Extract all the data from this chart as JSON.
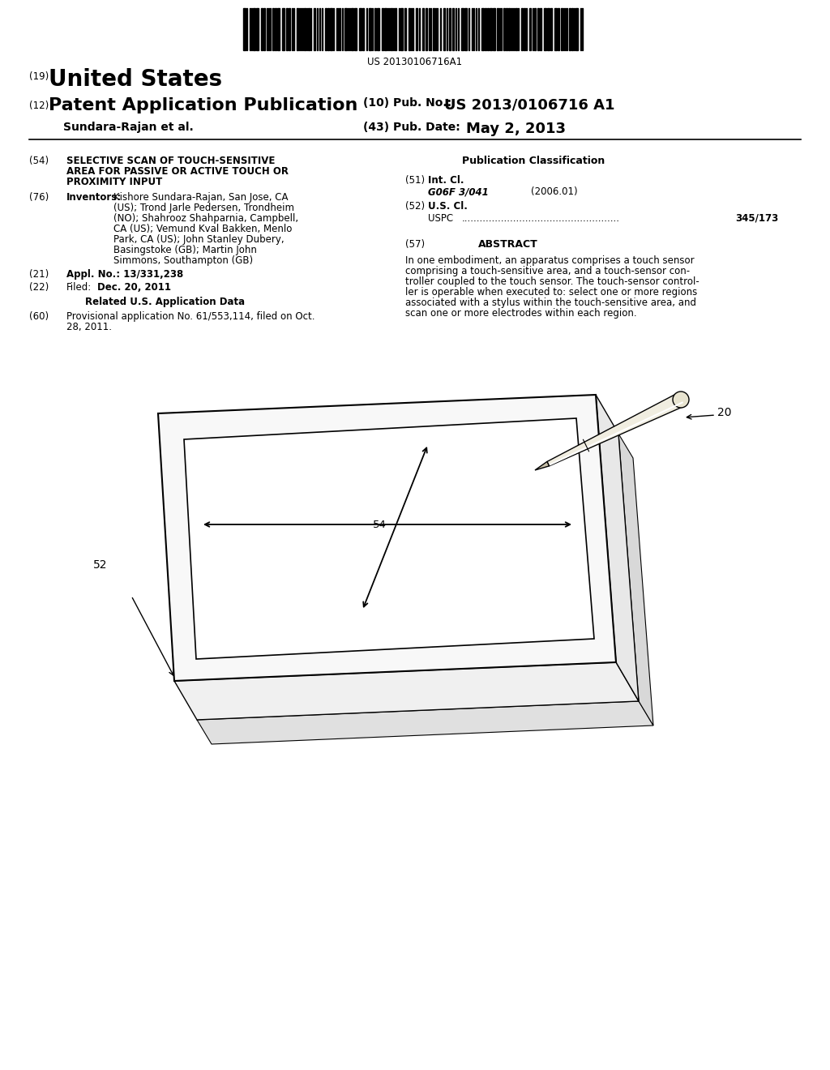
{
  "bg_color": "#ffffff",
  "barcode_text": "US 20130106716A1",
  "title_19": "(19)",
  "title_us": "United States",
  "title_12": "(12)",
  "title_pat": "Patent Application Publication",
  "title_10": "(10) Pub. No.:",
  "pub_no": "US 2013/0106716 A1",
  "author": "Sundara-Rajan et al.",
  "title_43": "(43) Pub. Date:",
  "pub_date": "May 2, 2013",
  "field_54_label": "(54)",
  "field_54_text": "SELECTIVE SCAN OF TOUCH-SENSITIVE\nAREA FOR PASSIVE OR ACTIVE TOUCH OR\nPROXIMITY INPUT",
  "field_76_label": "(76)",
  "field_76_title": "Inventors:",
  "field_76_text": "Kishore Sundara-Rajan, San Jose, CA\n(US); Trond Jarle Pedersen, Trondheim\n(NO); Shahrooz Shahparnia, Campbell,\nCA (US); Vemund Kval Bakken, Menlo\nPark, CA (US); John Stanley Dubery,\nBasingstoke (GB); Martin John\nSimmons, Southampton (GB)",
  "field_21_label": "(21)",
  "field_21_text": "Appl. No.: 13/331,238",
  "field_22_label": "(22)",
  "field_22_title": "Filed:",
  "field_22_text": "Dec. 20, 2011",
  "related_title": "Related U.S. Application Data",
  "field_60_label": "(60)",
  "field_60_text": "Provisional application No. 61/553,114, filed on Oct.\n28, 2011.",
  "pub_class_title": "Publication Classification",
  "field_51_label": "(51)",
  "field_51_title": "Int. Cl.",
  "field_51_class": "G06F 3/041",
  "field_51_year": "(2006.01)",
  "field_52_label": "(52)",
  "field_52_title": "U.S. Cl.",
  "field_52_uspc": "USPC",
  "field_52_dots": "....................................................",
  "field_52_num": "345/173",
  "field_57_label": "(57)",
  "field_57_title": "ABSTRACT",
  "abstract_text": "In one embodiment, an apparatus comprises a touch sensor\ncomprising a touch-sensitive area, and a touch-sensor con-\ntroller coupled to the touch sensor. The touch-sensor control-\nler is operable when executed to: select one or more regions\nassociated with a stylus within the touch-sensitive area, and\nscan one or more electrodes within each region.",
  "fig_label_20": "20",
  "fig_label_52": "52",
  "fig_label_54": "54"
}
